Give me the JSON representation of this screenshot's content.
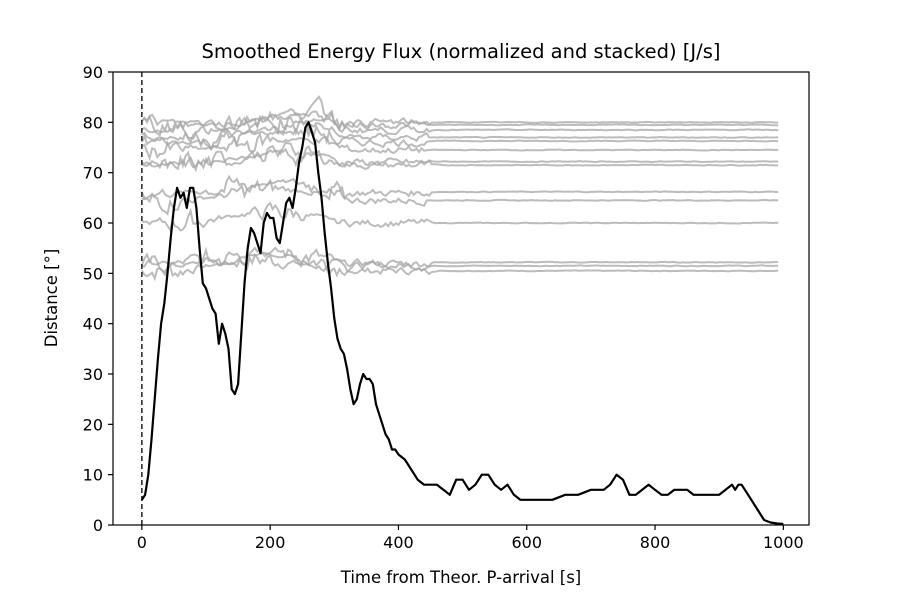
{
  "chart_data": {
    "type": "line",
    "title": "Smoothed Energy Flux (normalized and stacked) [J/s]",
    "xlabel": "Time from Theor. P-arrival [s]",
    "ylabel": "Distance [°]",
    "xlim": [
      -45,
      1040
    ],
    "ylim": [
      0,
      90
    ],
    "xticks": [
      0,
      200,
      400,
      600,
      800,
      1000
    ],
    "yticks": [
      0,
      10,
      20,
      30,
      40,
      50,
      60,
      70,
      80,
      90
    ],
    "grid": false,
    "legend": "none",
    "reference_line": {
      "x": 0,
      "style": "dashed",
      "color": "#000000"
    },
    "colors": {
      "stack_mean": "#000000",
      "stations": "#a6a6a6"
    },
    "stack_mean": {
      "x": [
        0,
        5,
        10,
        15,
        20,
        25,
        30,
        35,
        40,
        45,
        50,
        55,
        60,
        65,
        70,
        75,
        80,
        85,
        90,
        95,
        100,
        105,
        110,
        115,
        120,
        125,
        130,
        135,
        140,
        145,
        150,
        155,
        160,
        165,
        170,
        175,
        180,
        185,
        190,
        195,
        200,
        205,
        210,
        215,
        220,
        225,
        230,
        235,
        240,
        245,
        250,
        255,
        260,
        265,
        270,
        275,
        280,
        285,
        290,
        295,
        300,
        305,
        310,
        315,
        320,
        325,
        330,
        335,
        340,
        345,
        350,
        355,
        360,
        365,
        370,
        375,
        380,
        385,
        390,
        395,
        400,
        410,
        420,
        430,
        440,
        450,
        460,
        470,
        480,
        490,
        500,
        510,
        520,
        530,
        540,
        550,
        560,
        570,
        580,
        590,
        600,
        620,
        640,
        660,
        680,
        700,
        720,
        730,
        740,
        750,
        760,
        770,
        780,
        790,
        800,
        810,
        820,
        830,
        840,
        850,
        860,
        870,
        880,
        890,
        900,
        910,
        920,
        925,
        930,
        935,
        940,
        950,
        960,
        970,
        980,
        990,
        1000
      ],
      "y": [
        5,
        6,
        10,
        17,
        25,
        33,
        40,
        44,
        50,
        57,
        63,
        67,
        65,
        66,
        63,
        67,
        67,
        63,
        55,
        48,
        47,
        45,
        43,
        42,
        36,
        40,
        38,
        35,
        27,
        26,
        28,
        38,
        48,
        55,
        59,
        58,
        56,
        54,
        60,
        62,
        61,
        61,
        57,
        56,
        60,
        64,
        65,
        63,
        67,
        72,
        75,
        79,
        80,
        78,
        76,
        70,
        65,
        58,
        52,
        47,
        41,
        37,
        35,
        34,
        31,
        27,
        24,
        25,
        28,
        30,
        29,
        29,
        28,
        24,
        22,
        20,
        18,
        17,
        15,
        15,
        14,
        13,
        11,
        9,
        8,
        8,
        8,
        7,
        6,
        9,
        9,
        7,
        8,
        10,
        10,
        8,
        7,
        8,
        6,
        5,
        5,
        5,
        5,
        6,
        6,
        7,
        7,
        8,
        10,
        9,
        6,
        6,
        7,
        8,
        7,
        6,
        6,
        7,
        7,
        7,
        6,
        6,
        6,
        6,
        6,
        7,
        8,
        7,
        8,
        8,
        7,
        5,
        3,
        1,
        0.5,
        0.3,
        0.2
      ]
    },
    "stations": {
      "x_end": 995,
      "baselines": [
        50.5,
        51.5,
        52,
        60,
        64.5,
        66,
        71.5,
        72,
        74.5,
        76,
        77,
        78.5,
        79.5,
        80
      ],
      "tail_levels": [
        50.5,
        51.5,
        52.2,
        60,
        64.5,
        66.2,
        71.5,
        72.2,
        74.5,
        76.3,
        77,
        78.5,
        79.5,
        80
      ]
    }
  }
}
